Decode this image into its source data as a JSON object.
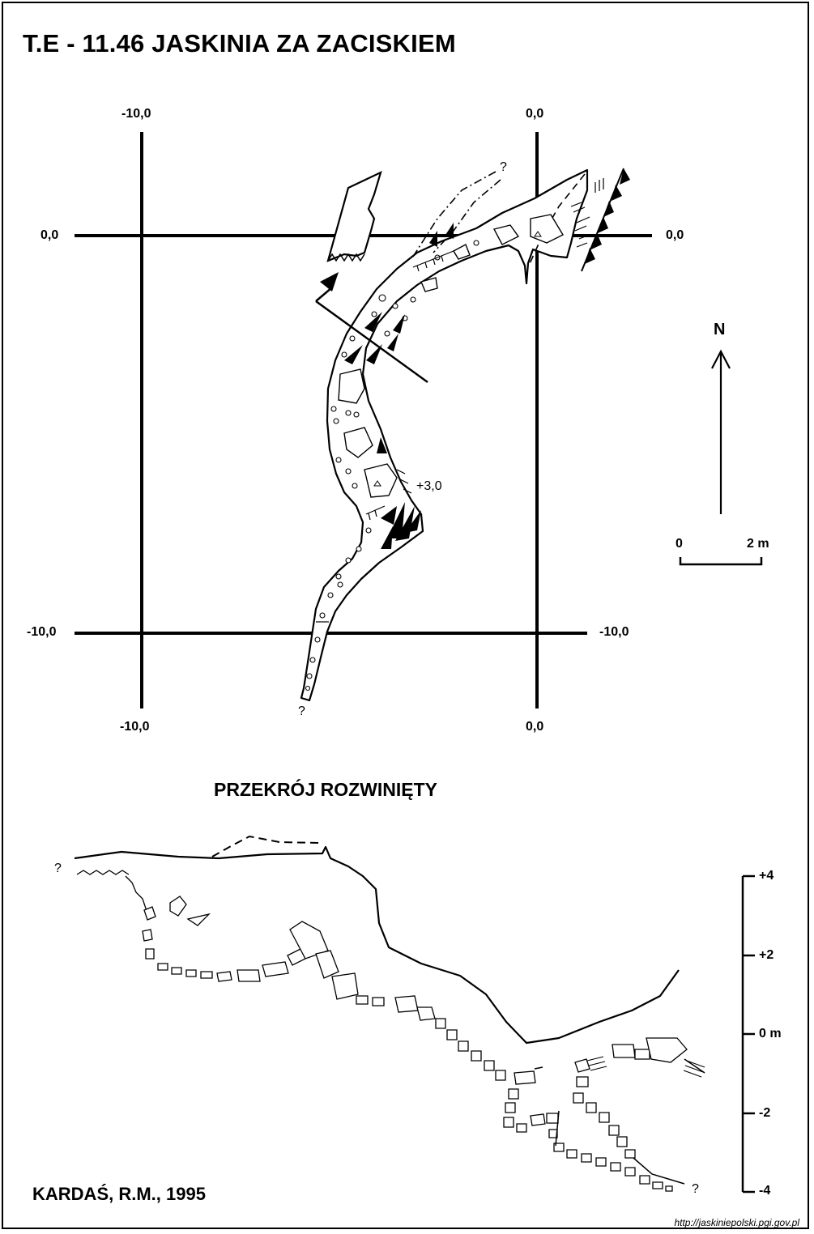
{
  "title": "T.E - 11.46  JASKINIA ZA ZACISKIEM",
  "plan": {
    "grid_labels": {
      "top_left": "-10,0",
      "top_right": "0,0",
      "left_top": "0,0",
      "right_top": "0,0",
      "left_bottom": "-10,0",
      "right_bottom": "-10,0",
      "bottom_left": "-10,0",
      "bottom_right": "0,0"
    },
    "elevation_mark": "+3,0",
    "unknown_marks": [
      "?",
      "?"
    ],
    "north": "N",
    "scale": {
      "zero": "0",
      "end": "2 m"
    }
  },
  "section": {
    "title": "PRZEKRÓJ ROZWINIĘTY",
    "unknown_marks": [
      "?",
      "?"
    ],
    "vertical_scale": [
      "+4",
      "+2",
      "0 m",
      "-2",
      "-4"
    ]
  },
  "author": "KARDAŚ, R.M., 1995",
  "source_url": "http://jaskiniepolski.pgi.gov.pl",
  "colors": {
    "ink": "#000000",
    "paper": "#ffffff"
  }
}
